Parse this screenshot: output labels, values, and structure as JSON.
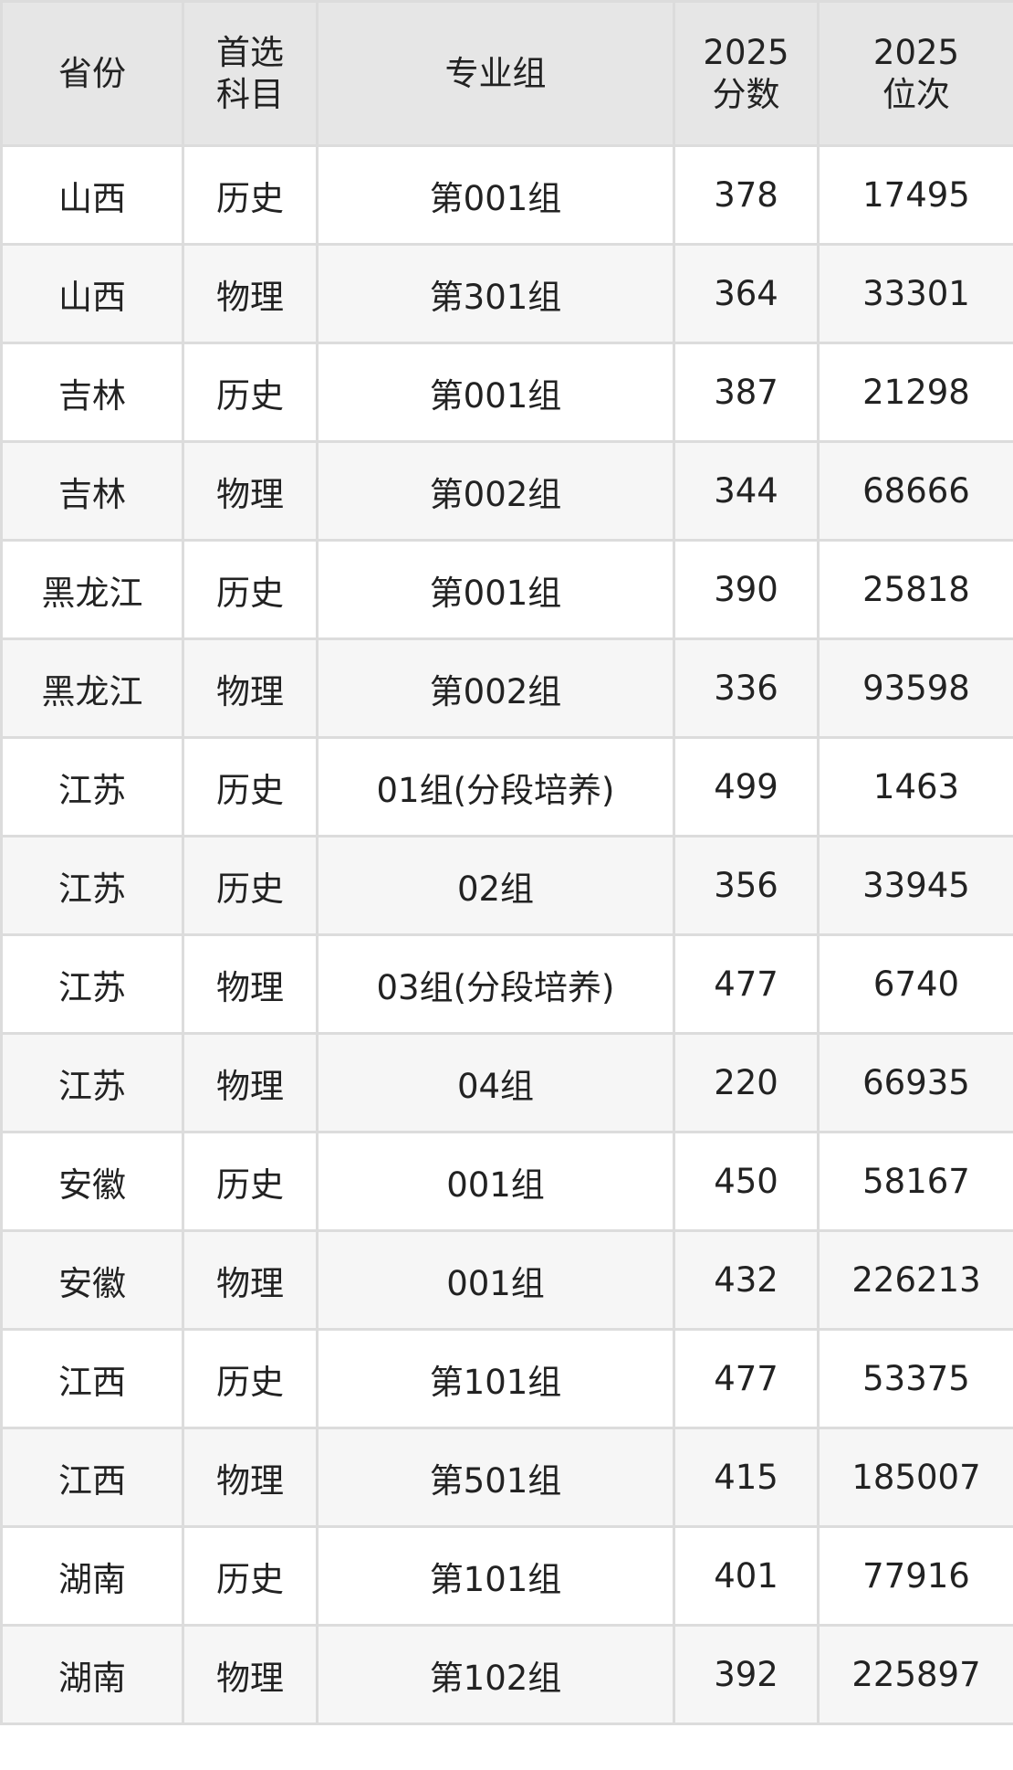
{
  "table": {
    "headers": [
      {
        "lines": [
          "省份"
        ]
      },
      {
        "lines": [
          "首选",
          "科目"
        ]
      },
      {
        "lines": [
          "专业组"
        ]
      },
      {
        "lines": [
          "2025",
          "分数"
        ]
      },
      {
        "lines": [
          "2025",
          "位次"
        ]
      }
    ],
    "rows": [
      [
        "山西",
        "历史",
        "第001组",
        "378",
        "17495"
      ],
      [
        "山西",
        "物理",
        "第301组",
        "364",
        "33301"
      ],
      [
        "吉林",
        "历史",
        "第001组",
        "387",
        "21298"
      ],
      [
        "吉林",
        "物理",
        "第002组",
        "344",
        "68666"
      ],
      [
        "黑龙江",
        "历史",
        "第001组",
        "390",
        "25818"
      ],
      [
        "黑龙江",
        "物理",
        "第002组",
        "336",
        "93598"
      ],
      [
        "江苏",
        "历史",
        "01组(分段培养)",
        "499",
        "1463"
      ],
      [
        "江苏",
        "历史",
        "02组",
        "356",
        "33945"
      ],
      [
        "江苏",
        "物理",
        "03组(分段培养)",
        "477",
        "6740"
      ],
      [
        "江苏",
        "物理",
        "04组",
        "220",
        "66935"
      ],
      [
        "安徽",
        "历史",
        "001组",
        "450",
        "58167"
      ],
      [
        "安徽",
        "物理",
        "001组",
        "432",
        "226213"
      ],
      [
        "江西",
        "历史",
        "第101组",
        "477",
        "53375"
      ],
      [
        "江西",
        "物理",
        "第501组",
        "415",
        "185007"
      ],
      [
        "湖南",
        "历史",
        "第101组",
        "401",
        "77916"
      ],
      [
        "湖南",
        "物理",
        "第102组",
        "392",
        "225897"
      ]
    ]
  },
  "colors": {
    "header_bg": "#e6e6e6",
    "row_alt_bg": "#f6f6f6",
    "border": "#dcdcdc",
    "text": "#222222"
  }
}
